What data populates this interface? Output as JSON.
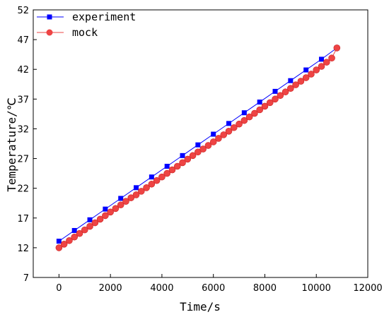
{
  "chart_data": {
    "type": "line",
    "title": "",
    "xlabel": "Time/s",
    "ylabel": "Temperature/℃",
    "xlim": [
      -1000,
      12000
    ],
    "ylim": [
      7,
      52
    ],
    "x_ticks": [
      0,
      2000,
      4000,
      6000,
      8000,
      10000,
      12000
    ],
    "y_ticks": [
      7,
      12,
      17,
      22,
      27,
      32,
      37,
      42,
      47,
      52
    ],
    "grid": false,
    "legend_position": "top-left",
    "series": [
      {
        "name": "experiment",
        "color": "#0000ff",
        "marker": "square",
        "x": [
          0,
          600,
          1200,
          1800,
          2400,
          3000,
          3600,
          4200,
          4800,
          5400,
          6000,
          6600,
          7200,
          7800,
          8400,
          9000,
          9600,
          10200,
          10800
        ],
        "y": [
          13.1,
          14.9,
          16.7,
          18.5,
          20.3,
          22.1,
          23.9,
          25.7,
          27.5,
          29.3,
          31.1,
          32.9,
          34.7,
          36.5,
          38.3,
          40.1,
          41.9,
          43.7,
          45.6
        ]
      },
      {
        "name": "mock",
        "color": "#ee4444",
        "marker": "circle",
        "x": [
          0,
          200,
          400,
          600,
          800,
          1000,
          1200,
          1400,
          1600,
          1800,
          2000,
          2200,
          2400,
          2600,
          2800,
          3000,
          3200,
          3400,
          3600,
          3800,
          4000,
          4200,
          4400,
          4600,
          4800,
          5000,
          5200,
          5400,
          5600,
          5800,
          6000,
          6200,
          6400,
          6600,
          6800,
          7000,
          7200,
          7400,
          7600,
          7800,
          8000,
          8200,
          8400,
          8600,
          8800,
          9000,
          9200,
          9400,
          9600,
          9800,
          10000,
          10200,
          10400,
          10600,
          10800
        ],
        "y": [
          12.0,
          12.6,
          13.2,
          13.8,
          14.4,
          15.0,
          15.6,
          16.2,
          16.8,
          17.4,
          18.0,
          18.6,
          19.2,
          19.8,
          20.4,
          20.9,
          21.5,
          22.1,
          22.7,
          23.3,
          23.9,
          24.5,
          25.1,
          25.7,
          26.3,
          26.9,
          27.5,
          28.1,
          28.6,
          29.2,
          29.8,
          30.4,
          31.0,
          31.6,
          32.2,
          32.8,
          33.4,
          34.0,
          34.6,
          35.2,
          35.8,
          36.4,
          37.0,
          37.6,
          38.2,
          38.8,
          39.4,
          40.0,
          40.6,
          41.2,
          41.9,
          42.5,
          43.2,
          43.9,
          45.6
        ]
      }
    ]
  }
}
